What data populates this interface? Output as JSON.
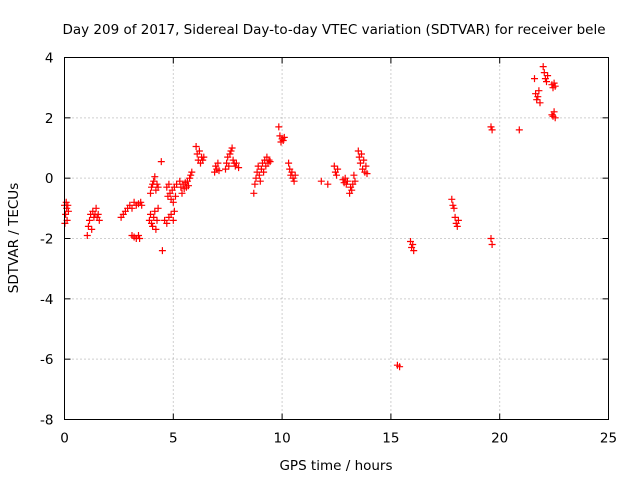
{
  "chart_data": {
    "type": "scatter",
    "title": "Day 209 of 2017, Sidereal Day-to-day VTEC variation (SDTVAR) for receiver bele",
    "xlabel": "GPS time / hours",
    "ylabel": "SDTVAR / TECUs",
    "xlim": [
      0,
      25
    ],
    "ylim": [
      -8,
      4
    ],
    "xticks": [
      0,
      5,
      10,
      15,
      20,
      25
    ],
    "yticks": [
      -8,
      -6,
      -4,
      -2,
      0,
      2,
      4
    ],
    "grid": true,
    "marker": "+",
    "color": "#ff0000",
    "series": [
      {
        "name": "SDTVAR",
        "points": [
          [
            0.0,
            -0.9
          ],
          [
            0.02,
            -1.5
          ],
          [
            0.05,
            -1.2
          ],
          [
            0.08,
            -0.8
          ],
          [
            0.1,
            -1.0
          ],
          [
            0.12,
            -1.4
          ],
          [
            0.15,
            -0.9
          ],
          [
            0.18,
            -1.1
          ],
          [
            1.05,
            -1.9
          ],
          [
            1.1,
            -1.6
          ],
          [
            1.15,
            -1.4
          ],
          [
            1.2,
            -1.2
          ],
          [
            1.25,
            -1.7
          ],
          [
            1.3,
            -1.1
          ],
          [
            1.35,
            -1.3
          ],
          [
            1.4,
            -1.2
          ],
          [
            1.45,
            -1.0
          ],
          [
            1.5,
            -1.3
          ],
          [
            1.55,
            -1.2
          ],
          [
            1.6,
            -1.4
          ],
          [
            2.6,
            -1.3
          ],
          [
            2.7,
            -1.2
          ],
          [
            2.8,
            -1.1
          ],
          [
            2.9,
            -1.0
          ],
          [
            3.0,
            -0.9
          ],
          [
            3.1,
            -1.0
          ],
          [
            3.2,
            -0.8
          ],
          [
            3.3,
            -0.9
          ],
          [
            3.4,
            -0.85
          ],
          [
            3.5,
            -0.8
          ],
          [
            3.55,
            -0.9
          ],
          [
            3.1,
            -1.9
          ],
          [
            3.2,
            -1.95
          ],
          [
            3.3,
            -2.0
          ],
          [
            3.4,
            -1.9
          ],
          [
            3.45,
            -2.0
          ],
          [
            3.9,
            -1.4
          ],
          [
            3.95,
            -1.2
          ],
          [
            4.0,
            -1.5
          ],
          [
            4.05,
            -1.6
          ],
          [
            4.1,
            -1.3
          ],
          [
            4.15,
            -1.1
          ],
          [
            4.2,
            -1.7
          ],
          [
            4.25,
            -1.4
          ],
          [
            4.3,
            -1.0
          ],
          [
            3.95,
            -0.5
          ],
          [
            4.0,
            -0.3
          ],
          [
            4.05,
            -0.2
          ],
          [
            4.1,
            -0.1
          ],
          [
            4.15,
            0.05
          ],
          [
            4.2,
            -0.4
          ],
          [
            4.25,
            -0.2
          ],
          [
            4.3,
            -0.3
          ],
          [
            4.45,
            0.55
          ],
          [
            4.5,
            -2.4
          ],
          [
            4.6,
            -1.4
          ],
          [
            4.7,
            -1.5
          ],
          [
            4.8,
            -1.3
          ],
          [
            4.9,
            -1.2
          ],
          [
            5.0,
            -1.4
          ],
          [
            5.05,
            -1.1
          ],
          [
            4.7,
            -0.3
          ],
          [
            4.75,
            -0.6
          ],
          [
            4.8,
            -0.2
          ],
          [
            4.85,
            -0.5
          ],
          [
            4.9,
            -0.7
          ],
          [
            4.95,
            -0.4
          ],
          [
            5.0,
            -0.8
          ],
          [
            5.05,
            -0.3
          ],
          [
            5.1,
            -0.6
          ],
          [
            5.15,
            -0.2
          ],
          [
            5.3,
            -0.1
          ],
          [
            5.35,
            -0.3
          ],
          [
            5.4,
            -0.5
          ],
          [
            5.45,
            -0.2
          ],
          [
            5.5,
            -0.35
          ],
          [
            5.55,
            -0.15
          ],
          [
            5.6,
            -0.3
          ],
          [
            5.65,
            -0.1
          ],
          [
            5.7,
            -0.25
          ],
          [
            5.75,
            0.0
          ],
          [
            5.8,
            0.1
          ],
          [
            5.85,
            0.2
          ],
          [
            6.05,
            1.05
          ],
          [
            6.1,
            0.8
          ],
          [
            6.15,
            0.6
          ],
          [
            6.2,
            0.9
          ],
          [
            6.25,
            0.5
          ],
          [
            6.3,
            0.7
          ],
          [
            6.35,
            0.6
          ],
          [
            6.4,
            0.7
          ],
          [
            6.9,
            0.2
          ],
          [
            6.95,
            0.4
          ],
          [
            7.0,
            0.3
          ],
          [
            7.05,
            0.5
          ],
          [
            7.1,
            0.25
          ],
          [
            7.4,
            0.3
          ],
          [
            7.45,
            0.5
          ],
          [
            7.5,
            0.7
          ],
          [
            7.55,
            0.4
          ],
          [
            7.6,
            0.8
          ],
          [
            7.65,
            0.9
          ],
          [
            7.7,
            1.0
          ],
          [
            7.75,
            0.6
          ],
          [
            7.8,
            0.5
          ],
          [
            7.85,
            0.4
          ],
          [
            7.9,
            0.5
          ],
          [
            8.0,
            0.35
          ],
          [
            8.7,
            -0.5
          ],
          [
            8.75,
            -0.2
          ],
          [
            8.8,
            0.0
          ],
          [
            8.85,
            0.2
          ],
          [
            8.9,
            0.4
          ],
          [
            8.95,
            0.1
          ],
          [
            9.0,
            -0.1
          ],
          [
            9.05,
            0.3
          ],
          [
            9.1,
            0.5
          ],
          [
            9.15,
            0.2
          ],
          [
            9.2,
            0.6
          ],
          [
            9.25,
            0.4
          ],
          [
            9.3,
            0.7
          ],
          [
            9.35,
            0.5
          ],
          [
            9.4,
            0.6
          ],
          [
            9.45,
            0.55
          ],
          [
            9.85,
            1.7
          ],
          [
            9.9,
            1.4
          ],
          [
            9.95,
            1.2
          ],
          [
            10.0,
            1.3
          ],
          [
            10.05,
            1.25
          ],
          [
            10.1,
            1.35
          ],
          [
            10.3,
            0.5
          ],
          [
            10.35,
            0.3
          ],
          [
            10.4,
            0.1
          ],
          [
            10.45,
            0.2
          ],
          [
            10.5,
            0.0
          ],
          [
            10.55,
            -0.1
          ],
          [
            10.6,
            0.1
          ],
          [
            11.8,
            -0.1
          ],
          [
            12.1,
            -0.2
          ],
          [
            12.4,
            0.4
          ],
          [
            12.45,
            0.2
          ],
          [
            12.5,
            0.1
          ],
          [
            12.55,
            0.3
          ],
          [
            12.8,
            -0.05
          ],
          [
            12.85,
            -0.15
          ],
          [
            12.9,
            0.0
          ],
          [
            12.95,
            -0.2
          ],
          [
            13.0,
            -0.1
          ],
          [
            13.1,
            -0.5
          ],
          [
            13.15,
            -0.3
          ],
          [
            13.2,
            -0.4
          ],
          [
            13.25,
            -0.2
          ],
          [
            13.3,
            0.1
          ],
          [
            13.35,
            -0.1
          ],
          [
            13.5,
            0.9
          ],
          [
            13.55,
            0.7
          ],
          [
            13.6,
            0.5
          ],
          [
            13.65,
            0.8
          ],
          [
            13.7,
            0.3
          ],
          [
            13.75,
            0.6
          ],
          [
            13.8,
            0.2
          ],
          [
            13.85,
            0.4
          ],
          [
            13.9,
            0.15
          ],
          [
            15.3,
            -6.2
          ],
          [
            15.4,
            -6.25
          ],
          [
            15.9,
            -2.1
          ],
          [
            15.95,
            -2.3
          ],
          [
            16.0,
            -2.2
          ],
          [
            16.05,
            -2.4
          ],
          [
            17.8,
            -0.7
          ],
          [
            17.85,
            -0.9
          ],
          [
            17.9,
            -1.0
          ],
          [
            17.95,
            -1.3
          ],
          [
            18.0,
            -1.5
          ],
          [
            18.05,
            -1.6
          ],
          [
            18.1,
            -1.4
          ],
          [
            19.6,
            1.7
          ],
          [
            19.65,
            1.6
          ],
          [
            19.6,
            -2.0
          ],
          [
            19.65,
            -2.2
          ],
          [
            20.9,
            1.6
          ],
          [
            21.6,
            3.3
          ],
          [
            21.65,
            2.8
          ],
          [
            21.7,
            2.6
          ],
          [
            21.75,
            2.7
          ],
          [
            21.8,
            2.9
          ],
          [
            21.85,
            2.5
          ],
          [
            22.0,
            3.7
          ],
          [
            22.05,
            3.5
          ],
          [
            22.1,
            3.3
          ],
          [
            22.15,
            3.2
          ],
          [
            22.2,
            3.4
          ],
          [
            22.4,
            3.1
          ],
          [
            22.45,
            3.0
          ],
          [
            22.5,
            3.15
          ],
          [
            22.55,
            3.05
          ],
          [
            22.4,
            2.1
          ],
          [
            22.45,
            2.05
          ],
          [
            22.5,
            2.2
          ],
          [
            22.55,
            2.0
          ]
        ]
      }
    ]
  }
}
